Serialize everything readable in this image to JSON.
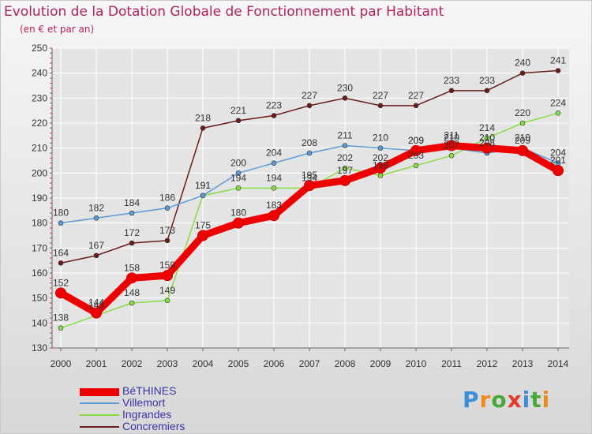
{
  "header": {
    "title": "Evolution de la Dotation Globale de Fonctionnement par Habitant",
    "subtitle": "(en € et par an)"
  },
  "logo": {
    "text": "Proxiti"
  },
  "colors": {
    "title": "#b2215d",
    "legend_text": "#3b35a7",
    "grid": "#ffffff",
    "axis": "#666666"
  },
  "chart_data": {
    "type": "line",
    "title": "Evolution de la Dotation Globale de Fonctionnement par Habitant",
    "subtitle": "(en € et par an)",
    "xlabel": "",
    "ylabel": "",
    "ylim": [
      130,
      250
    ],
    "yticks": [
      130,
      140,
      150,
      160,
      170,
      180,
      190,
      200,
      210,
      220,
      230,
      240,
      250
    ],
    "x": [
      "2000",
      "2001",
      "2002",
      "2003",
      "2004",
      "2005",
      "2006",
      "2007",
      "2008",
      "2009",
      "2010",
      "2011",
      "2012",
      "2013",
      "2014"
    ],
    "grid": true,
    "legend_position": "bottom-left",
    "series": [
      {
        "name": "BéTHINES",
        "color": "#ee0000",
        "values": [
          152,
          144,
          158,
          159,
          175,
          180,
          183,
          195,
          197,
          202,
          209,
          211,
          210,
          209,
          201
        ]
      },
      {
        "name": "Villemort",
        "color": "#5b9bd5",
        "values": [
          180,
          182,
          184,
          186,
          191,
          200,
          204,
          208,
          211,
          210,
          209,
          210,
          208,
          210,
          204
        ]
      },
      {
        "name": "Ingrandes",
        "color": "#88dd44",
        "values": [
          138,
          143,
          148,
          149,
          191,
          194,
          194,
          194,
          202,
          199,
          203,
          207,
          214,
          220,
          224
        ]
      },
      {
        "name": "Concremiers",
        "color": "#6b1b1b",
        "values": [
          164,
          167,
          172,
          173,
          218,
          221,
          223,
          227,
          230,
          227,
          227,
          233,
          233,
          240,
          241
        ]
      }
    ]
  }
}
